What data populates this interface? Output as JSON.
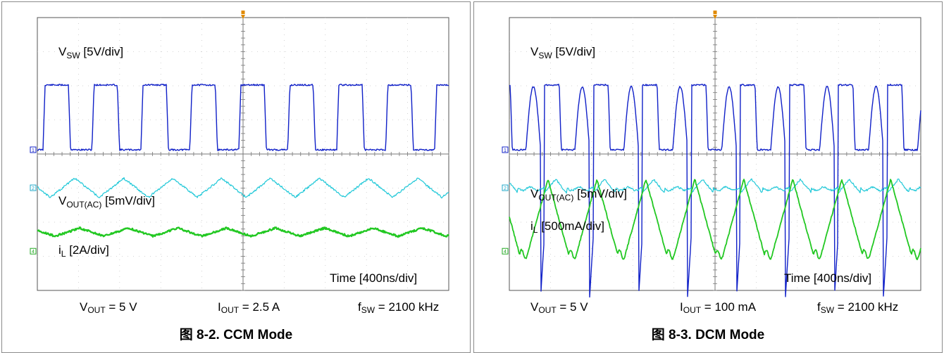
{
  "figures": [
    {
      "caption": "图 8-2. CCM Mode",
      "labels": {
        "vsw": {
          "main": "V",
          "sub": "SW",
          "rest": " [5V/div]"
        },
        "vout": {
          "main": "V",
          "sub": "OUT(AC)",
          "rest": " [5mV/div]"
        },
        "il": {
          "main": "i",
          "sub": "L",
          "rest": " [2A/div]"
        },
        "time": "Time [400ns/div]"
      },
      "params": [
        {
          "main": "V",
          "sub": "OUT",
          "rest": " = 5 V"
        },
        {
          "main": "I",
          "sub": "OUT",
          "rest": " = 2.5 A"
        },
        {
          "main": "f",
          "sub": "SW",
          "rest": " = 2100 kHz"
        }
      ],
      "channel_markers": [
        "1",
        "2",
        "4"
      ]
    },
    {
      "caption": "图 8-3. DCM Mode",
      "labels": {
        "vsw": {
          "main": "V",
          "sub": "SW",
          "rest": " [5V/div]"
        },
        "vout": {
          "main": "V",
          "sub": "OUT(AC)",
          "rest": " [5mV/div]"
        },
        "il": {
          "main": "i",
          "sub": "L",
          "rest": " [500mA/div]"
        },
        "time": "Time [400ns/div]"
      },
      "params": [
        {
          "main": "V",
          "sub": "OUT",
          "rest": " = 5 V"
        },
        {
          "main": "I",
          "sub": "OUT",
          "rest": " = 100 mA"
        },
        {
          "main": "f",
          "sub": "SW",
          "rest": " = 2100 kHz"
        }
      ],
      "channel_markers": [
        "1",
        "2",
        "4"
      ]
    }
  ],
  "chart_data": [
    {
      "type": "line",
      "title": "图 8-2. CCM Mode",
      "x_divisions": 10,
      "y_divisions": 8,
      "time_per_div_ns": 400,
      "switching_period_ns": 476,
      "series": [
        {
          "name": "VSW [5V/div]",
          "color": "#1020c8",
          "scale": "5V/div",
          "shape": "square",
          "low_div": 0,
          "high_div": 1.9,
          "duty": 0.52
        },
        {
          "name": "VOUT(AC) [5mV/div]",
          "color": "#20c8d8",
          "scale": "5mV/div",
          "shape": "triangle",
          "amplitude_div": 0.28
        },
        {
          "name": "iL [2A/div]",
          "color": "#22c822",
          "scale": "2A/div",
          "shape": "triangle",
          "amplitude_div": 0.12
        }
      ]
    },
    {
      "type": "line",
      "title": "图 8-3. DCM Mode",
      "x_divisions": 10,
      "y_divisions": 8,
      "time_per_div_ns": 400,
      "switching_period_ns": 476,
      "series": [
        {
          "name": "VSW [5V/div]",
          "color": "#1020c8",
          "scale": "5V/div",
          "shape": "dcm-pulse",
          "low_div": 0,
          "high_div": 1.9,
          "ringing_div": 1.85
        },
        {
          "name": "VOUT(AC) [5mV/div]",
          "color": "#20c8d8",
          "scale": "5mV/div",
          "shape": "triangle",
          "amplitude_div": 0.2
        },
        {
          "name": "iL [500mA/div]",
          "color": "#22c822",
          "scale": "500mA/div",
          "shape": "triangle-dcm",
          "amplitude_div": 2.2
        }
      ]
    }
  ]
}
